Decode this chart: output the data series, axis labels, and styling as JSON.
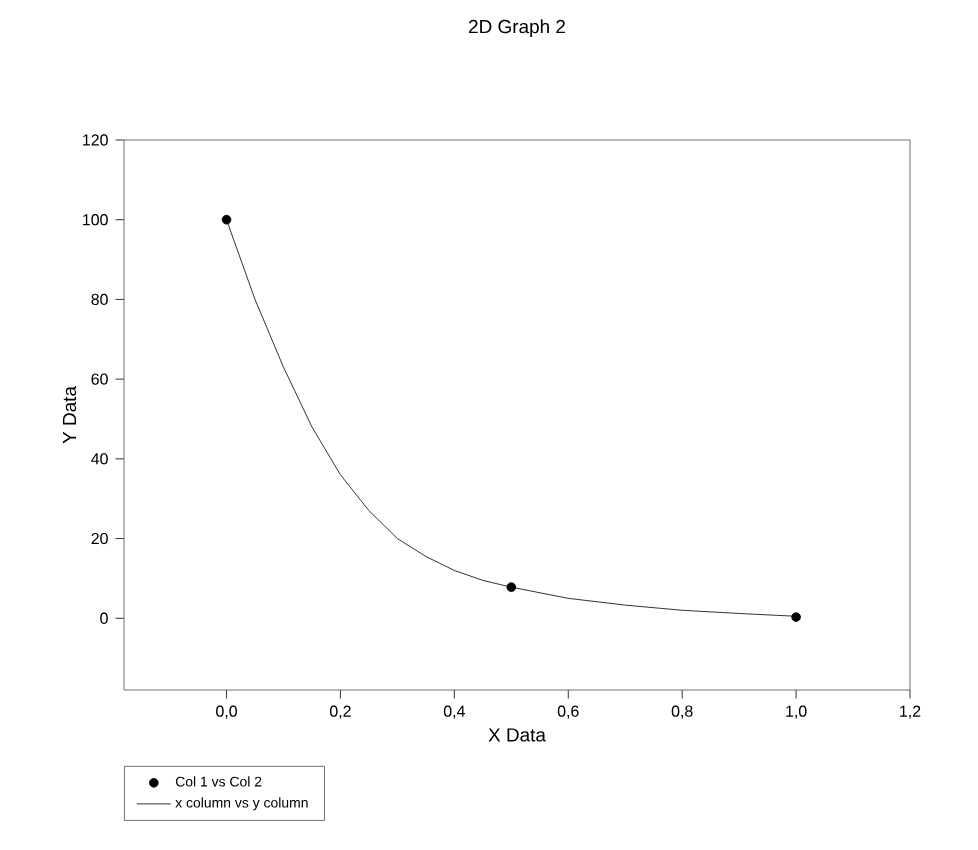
{
  "chart_data": {
    "type": "scatter",
    "title": "2D Graph 2",
    "xlabel": "X Data",
    "ylabel": "Y Data",
    "xlim": [
      -0.18,
      1.2
    ],
    "ylim": [
      -18,
      120
    ],
    "xticks": [
      {
        "value": 0,
        "label": "0,0"
      },
      {
        "value": 0.2,
        "label": "0,2"
      },
      {
        "value": 0.4,
        "label": "0,4"
      },
      {
        "value": 0.6,
        "label": "0,6"
      },
      {
        "value": 0.8,
        "label": "0,8"
      },
      {
        "value": 1.0,
        "label": "1,0"
      },
      {
        "value": 1.2,
        "label": "1,2"
      }
    ],
    "yticks": [
      0,
      20,
      40,
      60,
      80,
      100,
      120
    ],
    "grid": false,
    "legend": "bottom left",
    "series": [
      {
        "name": "Col 1 vs Col 2",
        "marker": "circle",
        "color": "#000000",
        "x": [
          0,
          0.5,
          1.0
        ],
        "values": [
          100,
          7.8,
          0.3
        ]
      },
      {
        "name": "x column vs y column",
        "type": "line",
        "marker": "none",
        "line_style": "solid",
        "color": "#000000",
        "x": [
          0,
          0.05,
          0.1,
          0.15,
          0.2,
          0.25,
          0.3,
          0.35,
          0.4,
          0.45,
          0.5,
          0.6,
          0.7,
          0.8,
          0.9,
          1.0
        ],
        "values": [
          100,
          80,
          63,
          48,
          36,
          27,
          20,
          15.5,
          12,
          9.5,
          7.8,
          5,
          3.3,
          2,
          1.2,
          0.5
        ]
      }
    ]
  }
}
